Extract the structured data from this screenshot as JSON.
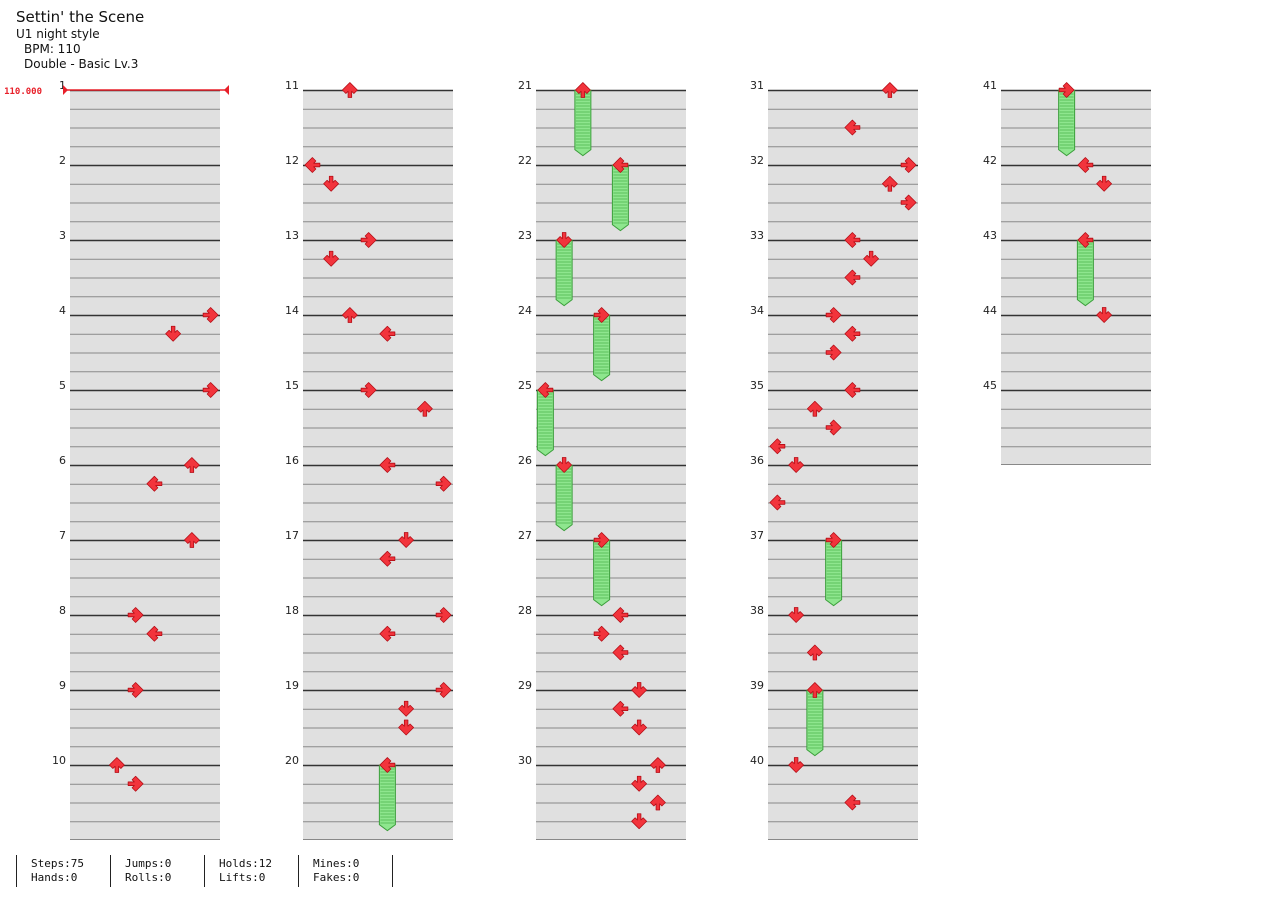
{
  "header": {
    "title": "Settin' the Scene",
    "style": "U1 night style",
    "bpm_label": "BPM: 110",
    "difficulty": "Double - Basic  Lv.3"
  },
  "bpm_marker": {
    "text": "110.000"
  },
  "measures": {
    "count": 45,
    "numbers": [
      "1",
      "2",
      "3",
      "4",
      "5",
      "6",
      "7",
      "8",
      "9",
      "10",
      "11",
      "12",
      "13",
      "14",
      "15",
      "16",
      "17",
      "18",
      "19",
      "20",
      "21",
      "22",
      "23",
      "24",
      "25",
      "26",
      "27",
      "28",
      "29",
      "30",
      "31",
      "32",
      "33",
      "34",
      "35",
      "36",
      "37",
      "38",
      "39",
      "40",
      "41",
      "42",
      "43",
      "44",
      "45"
    ]
  },
  "notes": [
    {
      "beat": 12,
      "lane": 7,
      "dir": "right"
    },
    {
      "beat": 13,
      "lane": 5,
      "dir": "down"
    },
    {
      "beat": 16,
      "lane": 7,
      "dir": "right"
    },
    {
      "beat": 20,
      "lane": 6,
      "dir": "up"
    },
    {
      "beat": 21,
      "lane": 4,
      "dir": "left"
    },
    {
      "beat": 24,
      "lane": 6,
      "dir": "up"
    },
    {
      "beat": 28,
      "lane": 3,
      "dir": "right"
    },
    {
      "beat": 29,
      "lane": 4,
      "dir": "left"
    },
    {
      "beat": 32,
      "lane": 3,
      "dir": "right"
    },
    {
      "beat": 36,
      "lane": 2,
      "dir": "up"
    },
    {
      "beat": 37,
      "lane": 3,
      "dir": "right"
    },
    {
      "beat": 40,
      "lane": 2,
      "dir": "up"
    },
    {
      "beat": 44,
      "lane": 0,
      "dir": "left"
    },
    {
      "beat": 45,
      "lane": 1,
      "dir": "down"
    },
    {
      "beat": 48,
      "lane": 3,
      "dir": "right"
    },
    {
      "beat": 49,
      "lane": 1,
      "dir": "down"
    },
    {
      "beat": 52,
      "lane": 2,
      "dir": "up"
    },
    {
      "beat": 53,
      "lane": 4,
      "dir": "left"
    },
    {
      "beat": 56,
      "lane": 3,
      "dir": "right"
    },
    {
      "beat": 57,
      "lane": 6,
      "dir": "up"
    },
    {
      "beat": 60,
      "lane": 4,
      "dir": "left"
    },
    {
      "beat": 61,
      "lane": 7,
      "dir": "right"
    },
    {
      "beat": 64,
      "lane": 5,
      "dir": "down"
    },
    {
      "beat": 65,
      "lane": 4,
      "dir": "left"
    },
    {
      "beat": 68,
      "lane": 7,
      "dir": "right"
    },
    {
      "beat": 69,
      "lane": 4,
      "dir": "left"
    },
    {
      "beat": 72,
      "lane": 7,
      "dir": "right"
    },
    {
      "beat": 73,
      "lane": 5,
      "dir": "down"
    },
    {
      "beat": 74,
      "lane": 5,
      "dir": "down"
    },
    {
      "beat": 76,
      "lane": 4,
      "dir": "left",
      "hold_end": 79.5
    },
    {
      "beat": 80,
      "lane": 2,
      "dir": "up",
      "hold_end": 83.5
    },
    {
      "beat": 84,
      "lane": 4,
      "dir": "left",
      "hold_end": 87.5
    },
    {
      "beat": 88,
      "lane": 1,
      "dir": "down",
      "hold_end": 91.5
    },
    {
      "beat": 92,
      "lane": 3,
      "dir": "right",
      "hold_end": 95.5
    },
    {
      "beat": 96,
      "lane": 0,
      "dir": "left",
      "hold_end": 99.5
    },
    {
      "beat": 100,
      "lane": 1,
      "dir": "down",
      "hold_end": 103.5
    },
    {
      "beat": 104,
      "lane": 3,
      "dir": "right",
      "hold_end": 107.5
    },
    {
      "beat": 108,
      "lane": 4,
      "dir": "left"
    },
    {
      "beat": 109,
      "lane": 3,
      "dir": "right"
    },
    {
      "beat": 110,
      "lane": 4,
      "dir": "left"
    },
    {
      "beat": 112,
      "lane": 5,
      "dir": "down"
    },
    {
      "beat": 113,
      "lane": 4,
      "dir": "left"
    },
    {
      "beat": 114,
      "lane": 5,
      "dir": "down"
    },
    {
      "beat": 116,
      "lane": 6,
      "dir": "up"
    },
    {
      "beat": 117,
      "lane": 5,
      "dir": "down"
    },
    {
      "beat": 118,
      "lane": 6,
      "dir": "up"
    },
    {
      "beat": 119,
      "lane": 5,
      "dir": "down"
    },
    {
      "beat": 120,
      "lane": 6,
      "dir": "up"
    },
    {
      "beat": 122,
      "lane": 4,
      "dir": "left"
    },
    {
      "beat": 124,
      "lane": 7,
      "dir": "right"
    },
    {
      "beat": 125,
      "lane": 6,
      "dir": "up"
    },
    {
      "beat": 126,
      "lane": 7,
      "dir": "right"
    },
    {
      "beat": 128,
      "lane": 4,
      "dir": "left"
    },
    {
      "beat": 129,
      "lane": 5,
      "dir": "down"
    },
    {
      "beat": 130,
      "lane": 4,
      "dir": "left"
    },
    {
      "beat": 132,
      "lane": 3,
      "dir": "right"
    },
    {
      "beat": 133,
      "lane": 4,
      "dir": "left"
    },
    {
      "beat": 134,
      "lane": 3,
      "dir": "right"
    },
    {
      "beat": 136,
      "lane": 4,
      "dir": "left"
    },
    {
      "beat": 137,
      "lane": 2,
      "dir": "up"
    },
    {
      "beat": 138,
      "lane": 3,
      "dir": "right"
    },
    {
      "beat": 139,
      "lane": 0,
      "dir": "left"
    },
    {
      "beat": 140,
      "lane": 1,
      "dir": "down"
    },
    {
      "beat": 142,
      "lane": 0,
      "dir": "left"
    },
    {
      "beat": 144,
      "lane": 3,
      "dir": "right",
      "hold_end": 147.5
    },
    {
      "beat": 148,
      "lane": 1,
      "dir": "down"
    },
    {
      "beat": 150,
      "lane": 2,
      "dir": "up"
    },
    {
      "beat": 152,
      "lane": 2,
      "dir": "up",
      "hold_end": 155.5
    },
    {
      "beat": 156,
      "lane": 1,
      "dir": "down"
    },
    {
      "beat": 158,
      "lane": 4,
      "dir": "left"
    },
    {
      "beat": 160,
      "lane": 3,
      "dir": "right",
      "hold_end": 163.5
    },
    {
      "beat": 164,
      "lane": 4,
      "dir": "left"
    },
    {
      "beat": 165,
      "lane": 5,
      "dir": "down"
    },
    {
      "beat": 168,
      "lane": 4,
      "dir": "left",
      "hold_end": 171.5
    },
    {
      "beat": 172,
      "lane": 5,
      "dir": "down"
    }
  ],
  "stats": {
    "steps": "Steps:75",
    "jumps": "Jumps:0",
    "holds": "Holds:12",
    "mines": "Mines:0",
    "hands": "Hands:0",
    "rolls": "Rolls:0",
    "lifts": "Lifts:0",
    "fakes": "Fakes:0"
  },
  "colors": {
    "note": "#f2343c",
    "note_stroke": "#b30d16",
    "hold_fill": "#8ee68e",
    "hold_stroke": "#3b9e3b",
    "row_fill": "#e0e0e0",
    "bpm": "#e8202a"
  }
}
